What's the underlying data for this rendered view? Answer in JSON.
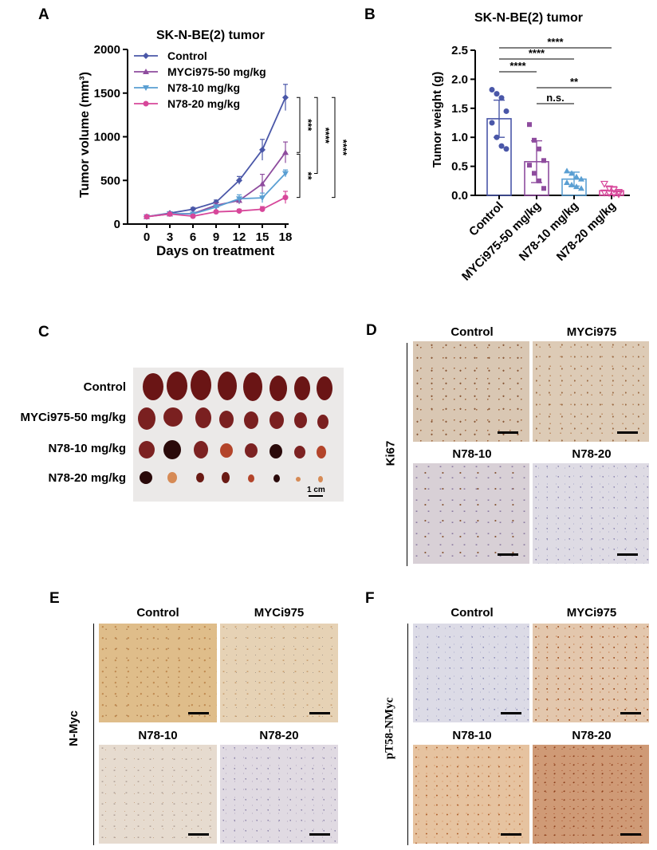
{
  "panels": {
    "A": "A",
    "B": "B",
    "C": "C",
    "D": "D",
    "E": "E",
    "F": "F"
  },
  "panel_a": {
    "title": "SK-N-BE(2) tumor",
    "ylabel": "Tumor volume (mm³)",
    "xlabel": "Days on treatment",
    "sig_labels": [
      "***",
      "****",
      "****",
      "**"
    ]
  },
  "panel_b": {
    "title": "SK-N-BE(2) tumor",
    "ylabel": "Tumor weight (g)",
    "sig_labels": [
      "****",
      "****",
      "****",
      "n.s.",
      "**"
    ]
  },
  "chart_data": [
    {
      "type": "line",
      "title": "SK-N-BE(2) tumor",
      "xlabel": "Days on treatment",
      "ylabel": "Tumor volume (mm³)",
      "x": [
        0,
        3,
        6,
        9,
        12,
        15,
        18
      ],
      "xlim": [
        0,
        18
      ],
      "ylim": [
        0,
        2000
      ],
      "yticks": [
        0,
        500,
        1000,
        1500,
        2000
      ],
      "legend": "top-left",
      "series": [
        {
          "name": "Control",
          "color": "#4a57a8",
          "marker": "diamond",
          "values": [
            85,
            125,
            170,
            250,
            500,
            850,
            1450
          ],
          "err": [
            10,
            10,
            20,
            25,
            45,
            120,
            150
          ]
        },
        {
          "name": "MYCi975-50 mg/kg",
          "color": "#8e4c9e",
          "marker": "triangle-up",
          "values": [
            85,
            115,
            120,
            215,
            270,
            460,
            820
          ],
          "err": [
            10,
            10,
            15,
            25,
            40,
            110,
            120
          ]
        },
        {
          "name": "N78-10 mg/kg",
          "color": "#5a9fd3",
          "marker": "triangle-down",
          "values": [
            85,
            120,
            115,
            195,
            290,
            300,
            580
          ],
          "err": [
            10,
            10,
            15,
            25,
            45,
            55,
            40
          ]
        },
        {
          "name": "N78-20 mg/kg",
          "color": "#d7479a",
          "marker": "circle",
          "values": [
            85,
            115,
            90,
            140,
            150,
            170,
            305
          ],
          "err": [
            10,
            10,
            10,
            15,
            20,
            30,
            70
          ]
        }
      ]
    },
    {
      "type": "bar",
      "title": "SK-N-BE(2) tumor",
      "ylabel": "Tumor weight (g)",
      "categories": [
        "Control",
        "MYCi975-50 mg/kg",
        "N78-10 mg/kg",
        "N78-20 mg/kg"
      ],
      "ylim": [
        0,
        2.5
      ],
      "yticks": [
        0.0,
        0.5,
        1.0,
        1.5,
        2.0,
        2.5
      ],
      "colors": [
        "#4a57a8",
        "#8e4c9e",
        "#5a9fd3",
        "#d7479a"
      ],
      "values": [
        1.32,
        0.58,
        0.28,
        0.08
      ],
      "err": [
        0.32,
        0.36,
        0.12,
        0.07
      ],
      "points": [
        [
          1.82,
          1.75,
          1.68,
          1.45,
          1.25,
          1.0,
          0.85,
          0.8
        ],
        [
          1.22,
          0.95,
          0.8,
          0.6,
          0.52,
          0.38,
          0.25,
          0.12
        ],
        [
          0.42,
          0.38,
          0.32,
          0.28,
          0.22,
          0.18,
          0.15,
          0.12
        ],
        [
          0.2,
          0.12,
          0.1,
          0.06,
          0.05,
          0.04,
          0.03,
          0.02
        ]
      ]
    }
  ],
  "panel_c": {
    "rows": [
      "Control",
      "MYCi975-50 mg/kg",
      "N78-10 mg/kg",
      "N78-20 mg/kg"
    ],
    "scale": "1 cm"
  },
  "panel_d": {
    "stain": "Ki67",
    "titles": [
      "Control",
      "MYCi975",
      "N78-10",
      "N78-20"
    ]
  },
  "panel_e": {
    "stain": "N-Myc",
    "titles": [
      "Control",
      "MYCi975",
      "N78-10",
      "N78-20"
    ]
  },
  "panel_f": {
    "stain": "pT58-NMyc",
    "titles": [
      "Control",
      "MYCi975",
      "N78-10",
      "N78-20"
    ]
  }
}
